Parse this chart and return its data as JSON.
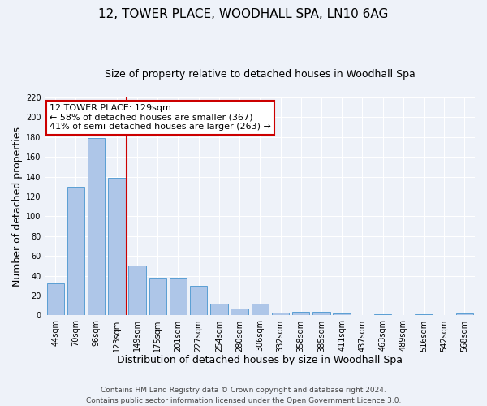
{
  "title": "12, TOWER PLACE, WOODHALL SPA, LN10 6AG",
  "subtitle": "Size of property relative to detached houses in Woodhall Spa",
  "xlabel": "Distribution of detached houses by size in Woodhall Spa",
  "ylabel": "Number of detached properties",
  "bar_labels": [
    "44sqm",
    "70sqm",
    "96sqm",
    "123sqm",
    "149sqm",
    "175sqm",
    "201sqm",
    "227sqm",
    "254sqm",
    "280sqm",
    "306sqm",
    "332sqm",
    "358sqm",
    "385sqm",
    "411sqm",
    "437sqm",
    "463sqm",
    "489sqm",
    "516sqm",
    "542sqm",
    "568sqm"
  ],
  "bar_values": [
    32,
    130,
    179,
    139,
    50,
    38,
    38,
    30,
    12,
    7,
    12,
    3,
    4,
    4,
    2,
    0,
    1,
    0,
    1,
    0,
    2
  ],
  "bar_color": "#aec6e8",
  "bar_edge_color": "#5a9fd4",
  "background_color": "#eef2f9",
  "grid_color": "#ffffff",
  "vline_x_index": 3,
  "vline_color": "#cc0000",
  "annotation_text": "12 TOWER PLACE: 129sqm\n← 58% of detached houses are smaller (367)\n41% of semi-detached houses are larger (263) →",
  "annotation_box_color": "#ffffff",
  "annotation_box_edge_color": "#cc0000",
  "ylim": [
    0,
    220
  ],
  "yticks": [
    0,
    20,
    40,
    60,
    80,
    100,
    120,
    140,
    160,
    180,
    200,
    220
  ],
  "footer_line1": "Contains HM Land Registry data © Crown copyright and database right 2024.",
  "footer_line2": "Contains public sector information licensed under the Open Government Licence 3.0.",
  "title_fontsize": 11,
  "subtitle_fontsize": 9,
  "axis_label_fontsize": 9,
  "tick_fontsize": 7,
  "annotation_fontsize": 8,
  "footer_fontsize": 6.5
}
